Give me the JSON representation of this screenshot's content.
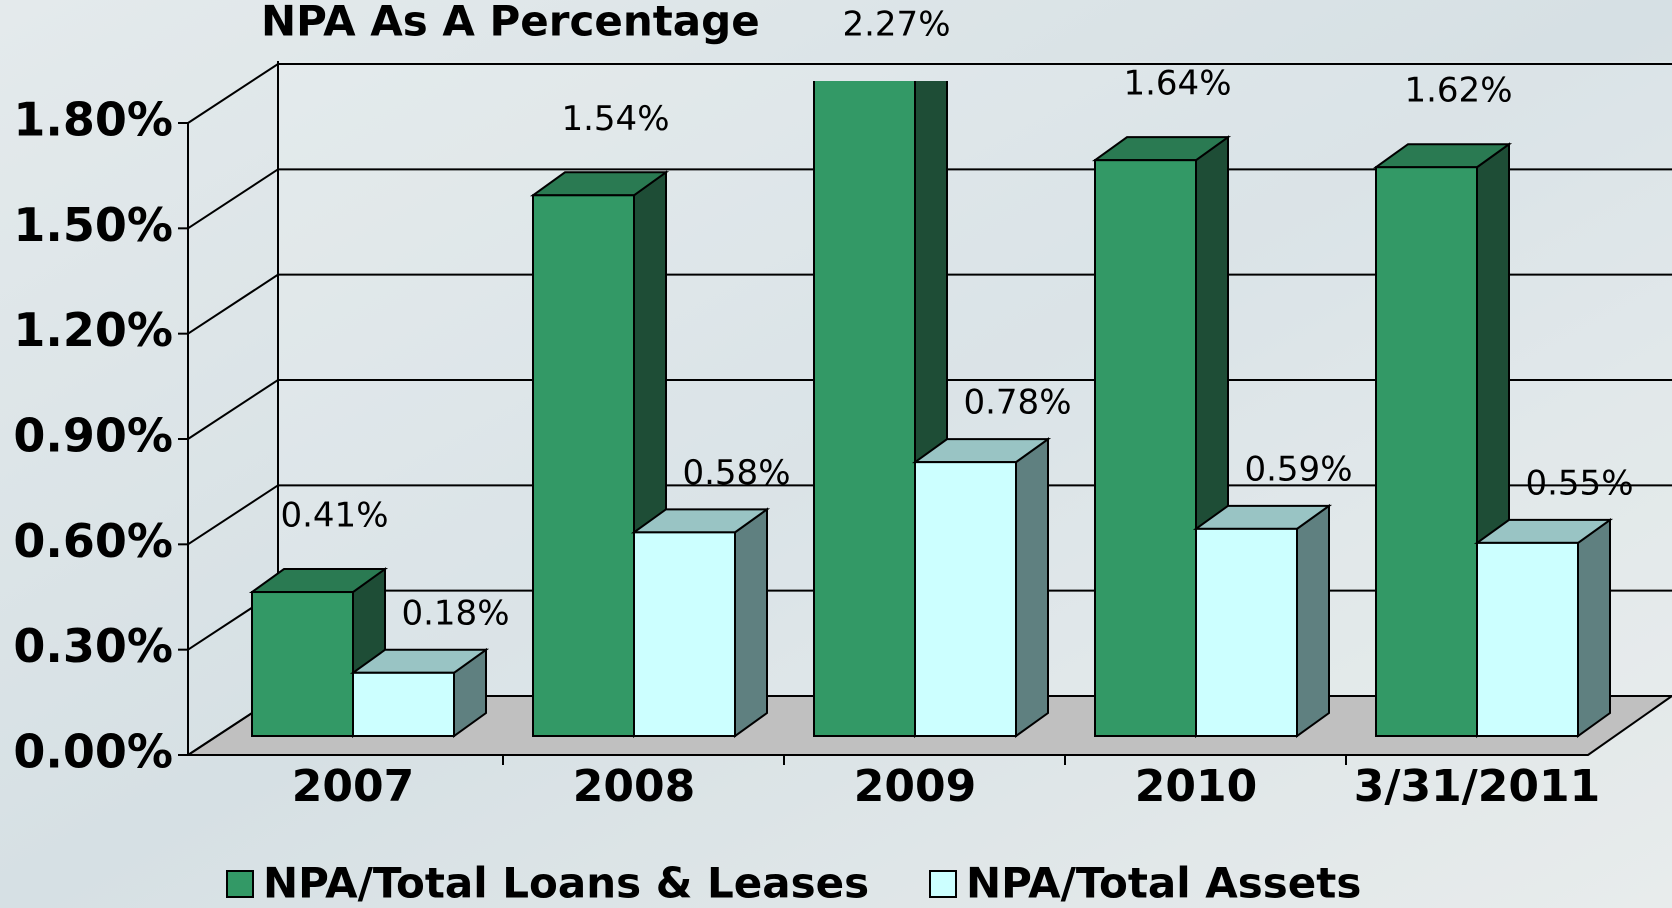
{
  "chart_data": {
    "type": "bar3d",
    "title": "NPA As A Percentage",
    "categories": [
      "2007",
      "2008",
      "2009",
      "2010",
      "3/31/2011"
    ],
    "series": [
      {
        "name": "NPA/Total Loans & Leases",
        "color": "#339966",
        "values": [
          0.41,
          1.54,
          2.27,
          1.64,
          1.62
        ],
        "value_labels": [
          "0.41%",
          "1.54%",
          "2.27%",
          "1.64%",
          "1.62%"
        ]
      },
      {
        "name": "NPA/Total Assets",
        "color": "#ccffff",
        "values": [
          0.18,
          0.58,
          0.78,
          0.59,
          0.55
        ],
        "value_labels": [
          "0.18%",
          "0.58%",
          "0.78%",
          "0.59%",
          "0.55%"
        ]
      }
    ],
    "ylim": [
      0,
      1.8
    ],
    "yticks": [
      {
        "value": 0,
        "label": "0.00%"
      },
      {
        "value": 0.3,
        "label": "0.30%"
      },
      {
        "value": 0.6,
        "label": "0.60%"
      },
      {
        "value": 0.9,
        "label": "0.90%"
      },
      {
        "value": 1.2,
        "label": "1.20%"
      },
      {
        "value": 1.5,
        "label": "1.50%"
      },
      {
        "value": 1.8,
        "label": "1.80%"
      }
    ],
    "grid": true,
    "legend": "bottom"
  }
}
